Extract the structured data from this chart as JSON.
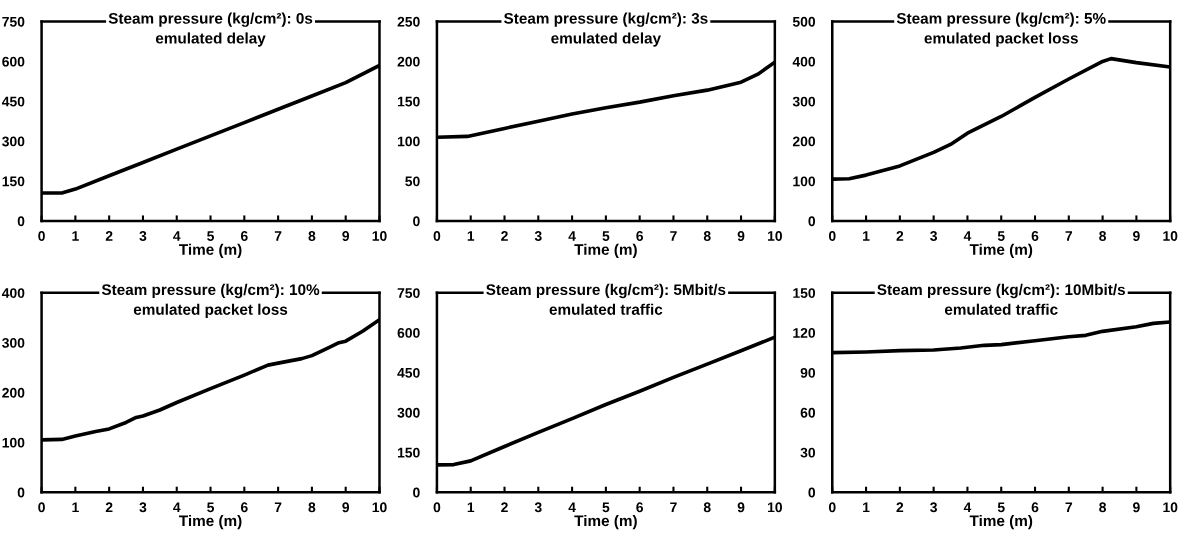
{
  "chart_data": [
    {
      "type": "line",
      "title": "Steam pressure (kg/cm²): 0s\nemulated delay",
      "xlabel": "Time (m)",
      "xlim": [
        0,
        10
      ],
      "xticks": [
        0,
        1,
        2,
        3,
        4,
        5,
        6,
        7,
        8,
        9,
        10
      ],
      "ylim": [
        0,
        750
      ],
      "yticks": [
        0,
        150,
        300,
        450,
        600,
        750
      ],
      "grid": false,
      "legend": false,
      "series": [
        {
          "color": "#000000",
          "x": [
            0,
            0.6,
            1,
            2,
            3,
            4,
            5,
            6,
            7,
            8,
            9,
            10
          ],
          "values": [
            105,
            105,
            120,
            170,
            220,
            270,
            320,
            370,
            420,
            470,
            520,
            585
          ]
        }
      ]
    },
    {
      "type": "line",
      "title": "Steam pressure (kg/cm²): 3s\nemulated delay",
      "xlabel": "Time (m)",
      "xlim": [
        0,
        10
      ],
      "xticks": [
        0,
        1,
        2,
        3,
        4,
        5,
        6,
        7,
        8,
        9,
        10
      ],
      "ylim": [
        0,
        250
      ],
      "yticks": [
        0,
        50,
        100,
        150,
        200,
        250
      ],
      "grid": false,
      "legend": false,
      "series": [
        {
          "color": "#000000",
          "x": [
            0,
            0.9,
            2,
            3,
            4,
            5,
            6,
            7,
            8,
            9,
            9.5,
            10
          ],
          "values": [
            105,
            106,
            116,
            125,
            134,
            142,
            149,
            157,
            164,
            174,
            184,
            199
          ]
        }
      ]
    },
    {
      "type": "line",
      "title": "Steam pressure (kg/cm²): 5%\nemulated packet loss",
      "xlabel": "Time (m)",
      "xlim": [
        0,
        10
      ],
      "xticks": [
        0,
        1,
        2,
        3,
        4,
        5,
        6,
        7,
        8,
        9,
        10
      ],
      "ylim": [
        0,
        500
      ],
      "yticks": [
        0,
        100,
        200,
        300,
        400,
        500
      ],
      "grid": false,
      "legend": false,
      "series": [
        {
          "color": "#000000",
          "x": [
            0,
            0.5,
            1,
            2,
            3,
            3.5,
            4,
            5,
            6,
            7,
            8,
            8.25,
            9,
            10
          ],
          "values": [
            105,
            106,
            115,
            138,
            172,
            192,
            220,
            262,
            310,
            356,
            400,
            407,
            397,
            386
          ]
        }
      ]
    },
    {
      "type": "line",
      "title": "Steam pressure (kg/cm²): 10%\nemulated packet loss",
      "xlabel": "Time (m)",
      "xlim": [
        0,
        10
      ],
      "xticks": [
        0,
        1,
        2,
        3,
        4,
        5,
        6,
        7,
        8,
        9,
        10
      ],
      "ylim": [
        0,
        400
      ],
      "yticks": [
        0,
        100,
        200,
        300,
        400
      ],
      "grid": false,
      "legend": false,
      "series": [
        {
          "color": "#000000",
          "x": [
            0,
            0.6,
            1,
            1.6,
            2,
            2.5,
            2.8,
            3,
            3.5,
            4,
            5,
            6,
            6.7,
            7,
            7.7,
            8,
            8.5,
            8.8,
            9,
            9.5,
            10
          ],
          "values": [
            105,
            106,
            113,
            122,
            127,
            140,
            150,
            153,
            165,
            180,
            208,
            235,
            255,
            259,
            268,
            274,
            290,
            300,
            303,
            323,
            346
          ]
        }
      ]
    },
    {
      "type": "line",
      "title": "Steam pressure (kg/cm²): 5Mbit/s\nemulated traffic",
      "xlabel": "Time (m)",
      "xlim": [
        0,
        10
      ],
      "xticks": [
        0,
        1,
        2,
        3,
        4,
        5,
        6,
        7,
        8,
        9,
        10
      ],
      "ylim": [
        0,
        750
      ],
      "yticks": [
        0,
        150,
        300,
        450,
        600,
        750
      ],
      "grid": false,
      "legend": false,
      "series": [
        {
          "color": "#000000",
          "x": [
            0,
            0.5,
            1,
            2,
            3,
            4,
            5,
            6,
            7,
            8,
            9,
            10
          ],
          "values": [
            103,
            104,
            118,
            172,
            225,
            277,
            330,
            380,
            432,
            482,
            532,
            583
          ]
        }
      ]
    },
    {
      "type": "line",
      "title": "Steam pressure (kg/cm²): 10Mbit/s\nemulated traffic",
      "xlabel": "Time (m)",
      "xlim": [
        0,
        10
      ],
      "xticks": [
        0,
        1,
        2,
        3,
        4,
        5,
        6,
        7,
        8,
        9,
        10
      ],
      "ylim": [
        0,
        150
      ],
      "yticks": [
        0,
        30,
        60,
        90,
        120,
        150
      ],
      "grid": false,
      "legend": false,
      "series": [
        {
          "color": "#000000",
          "x": [
            0,
            1,
            2,
            3,
            3.8,
            4.5,
            5,
            6,
            7,
            7.5,
            8,
            9,
            9.5,
            10
          ],
          "values": [
            105,
            105.5,
            106.5,
            107,
            108.5,
            110.5,
            111,
            114,
            117,
            118,
            121,
            124.5,
            127,
            128
          ]
        }
      ]
    }
  ]
}
